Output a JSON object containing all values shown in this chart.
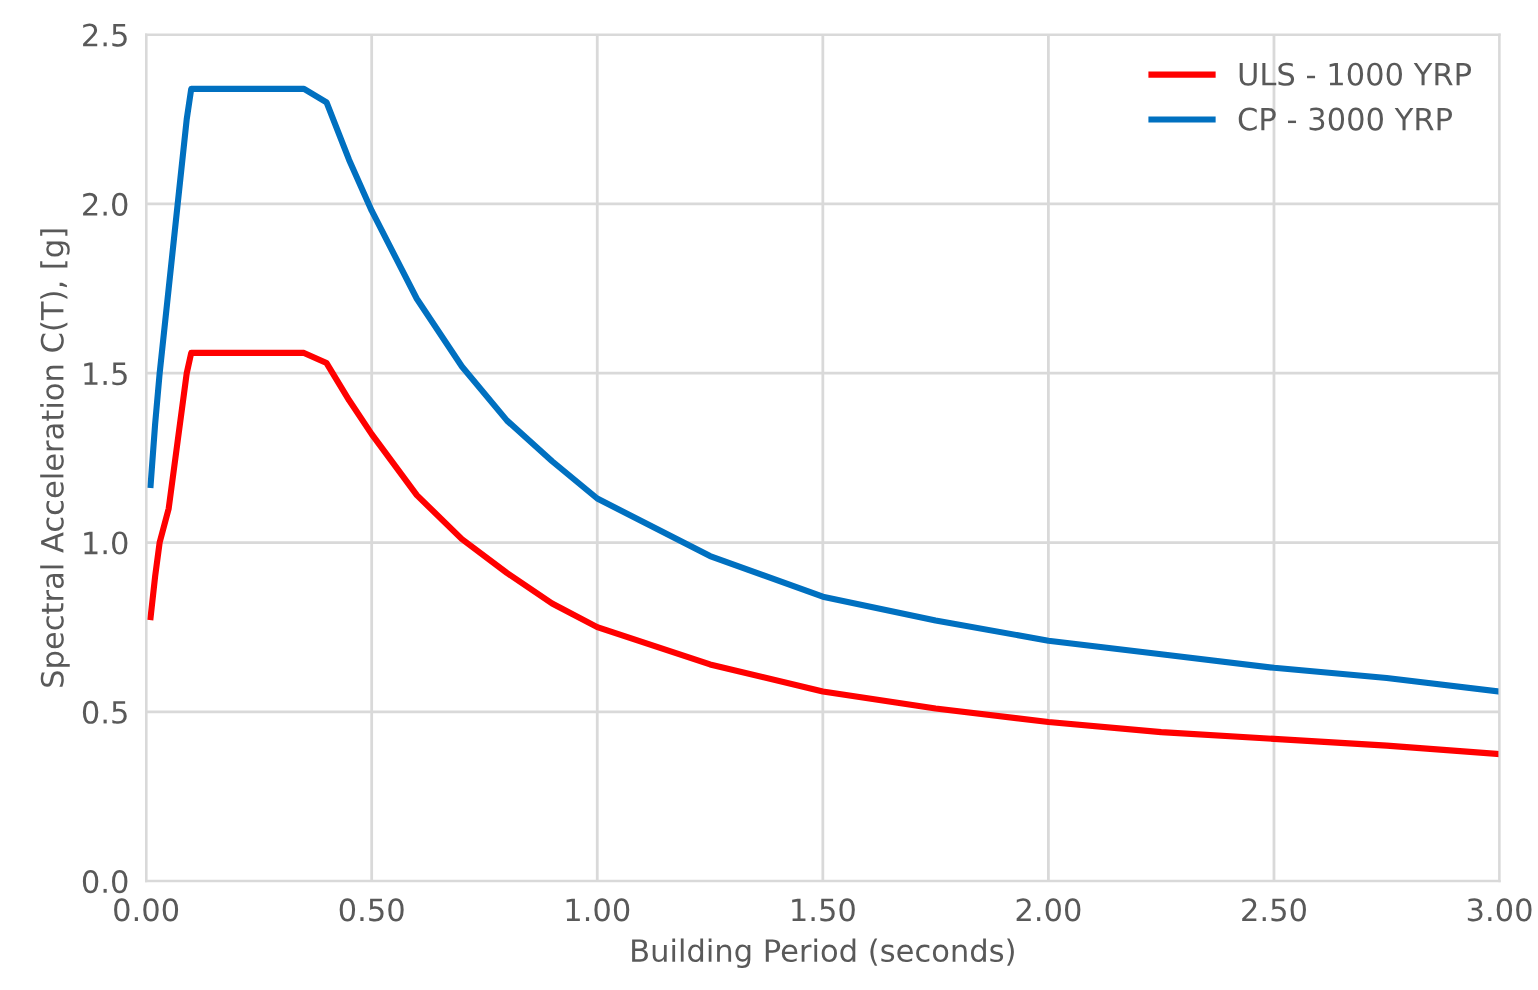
{
  "chart_data": {
    "type": "line",
    "xlabel": "Building Period (seconds)",
    "ylabel": "Spectral Acceleration C(T), [g]",
    "xlim": [
      0,
      3
    ],
    "ylim": [
      0,
      2.5
    ],
    "xticks": [
      {
        "value": 0,
        "label": "0.00"
      },
      {
        "value": 0.5,
        "label": "0.50"
      },
      {
        "value": 1,
        "label": "1.00"
      },
      {
        "value": 1.5,
        "label": "1.50"
      },
      {
        "value": 2,
        "label": "2.00"
      },
      {
        "value": 2.5,
        "label": "2.50"
      },
      {
        "value": 3,
        "label": "3.00"
      }
    ],
    "yticks": [
      {
        "value": 0,
        "label": "0.0"
      },
      {
        "value": 0.5,
        "label": "0.5"
      },
      {
        "value": 1,
        "label": "1.0"
      },
      {
        "value": 1.5,
        "label": "1.5"
      },
      {
        "value": 2,
        "label": "2.0"
      },
      {
        "value": 2.5,
        "label": "2.5"
      }
    ],
    "grid": true,
    "legend": "top right",
    "marker": "none",
    "line_style": "solid",
    "x": [
      0.01,
      0.02,
      0.03,
      0.05,
      0.07,
      0.09,
      0.1,
      0.35,
      0.4,
      0.45,
      0.5,
      0.6,
      0.7,
      0.8,
      0.9,
      1.0,
      1.25,
      1.5,
      1.75,
      2.0,
      2.25,
      2.5,
      2.75,
      3.0
    ],
    "series": [
      {
        "name": "ULS - 1000 YRP",
        "color": "#ff0000",
        "values": [
          0.78,
          0.9,
          1.0,
          1.1,
          1.3,
          1.5,
          1.56,
          1.56,
          1.53,
          1.42,
          1.32,
          1.14,
          1.01,
          0.91,
          0.82,
          0.75,
          0.64,
          0.56,
          0.51,
          0.47,
          0.44,
          0.42,
          0.4,
          0.375
        ]
      },
      {
        "name": "CP - 3000 YRP",
        "color": "#0070c0",
        "values": [
          1.17,
          1.35,
          1.5,
          1.75,
          2.0,
          2.25,
          2.34,
          2.34,
          2.3,
          2.13,
          1.98,
          1.72,
          1.52,
          1.36,
          1.24,
          1.13,
          0.96,
          0.84,
          0.77,
          0.71,
          0.67,
          0.63,
          0.6,
          0.56
        ]
      }
    ]
  }
}
